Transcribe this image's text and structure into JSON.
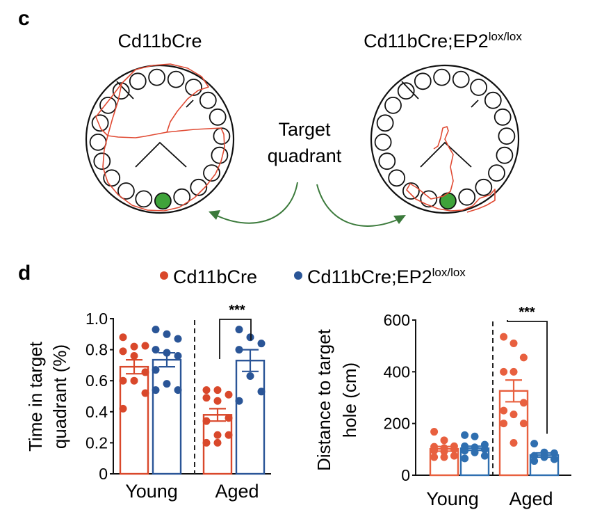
{
  "panel_c": {
    "letter": "c",
    "mazes": [
      {
        "title": "Cd11bCre",
        "title_sup": ""
      },
      {
        "title": "Cd11bCre;EP2",
        "title_sup": "lox/lox"
      }
    ],
    "center_label_line1": "Target",
    "center_label_line2": "quadrant",
    "colors": {
      "track": "#e04a33",
      "target_hole": "#3fa33a",
      "arrow": "#3b7a3b",
      "outline": "#111111"
    }
  },
  "panel_d": {
    "letter": "d",
    "legend": [
      {
        "label": "Cd11bCre",
        "sup": "",
        "color": "#d9482b"
      },
      {
        "label": "Cd11bCre;EP2",
        "sup": "lox/lox",
        "color": "#2a5597"
      }
    ]
  },
  "chart_data": [
    {
      "type": "bar",
      "title": "",
      "xlabel": "",
      "ylabel": "Time in target quadrant (%)",
      "ylabel_line1": "Time in target",
      "ylabel_line2": "quadrant (%)",
      "ylim": [
        0,
        1.0
      ],
      "yticks": [
        "0",
        "0.2",
        "0.4",
        "0.6",
        "0.8",
        "1.0"
      ],
      "ytick_values": [
        0,
        0.2,
        0.4,
        0.6,
        0.8,
        1.0
      ],
      "categories": [
        "Young",
        "Aged"
      ],
      "series": [
        {
          "name": "Cd11bCre",
          "color": "#d9482b",
          "means": [
            0.69,
            0.38
          ],
          "sem": [
            0.045,
            0.04
          ],
          "points": [
            [
              0.88,
              0.82,
              0.825,
              0.79,
              0.76,
              0.655,
              0.6,
              0.6,
              0.52,
              0.42
            ],
            [
              0.54,
              0.54,
              0.51,
              0.49,
              0.47,
              0.36,
              0.34,
              0.25,
              0.25,
              0.2,
              0.2
            ]
          ]
        },
        {
          "name": "Cd11bCre;EP2lox/lox",
          "color": "#2a5597",
          "means": [
            0.735,
            0.73
          ],
          "sem": [
            0.045,
            0.07
          ],
          "points": [
            [
              0.93,
              0.9,
              0.87,
              0.8,
              0.78,
              0.76,
              0.67,
              0.58,
              0.54,
              0.54
            ],
            [
              0.93,
              0.88,
              0.84,
              0.8,
              0.63,
              0.53,
              0.47
            ]
          ]
        }
      ],
      "annotations": [
        {
          "text": "***",
          "between": "Aged Cd11bCre vs Aged Cd11bCre;EP2lox/lox"
        }
      ],
      "grid": false
    },
    {
      "type": "bar",
      "title": "",
      "xlabel": "",
      "ylabel": "Distance to target hole (cm)",
      "ylabel_line1": "Distance to target",
      "ylabel_line2": "hole (cm)",
      "ylim": [
        0,
        600
      ],
      "yticks": [
        "0",
        "200",
        "400",
        "600"
      ],
      "ytick_values": [
        0,
        200,
        400,
        600
      ],
      "categories": [
        "Young",
        "Aged"
      ],
      "series": [
        {
          "name": "Cd11bCre",
          "color": "#e8603f",
          "means": [
            102,
            326
          ],
          "sem": [
            9,
            42
          ],
          "points": [
            [
              168,
              135,
              112,
              110,
              105,
              100,
              95,
              92,
              75,
              70,
              70
            ],
            [
              535,
              510,
              455,
              400,
              400,
              280,
              250,
              235,
              200,
              200,
              125
            ]
          ]
        },
        {
          "name": "Cd11bCre;EP2lox/lox",
          "color": "#2f6fb0",
          "means": [
            104,
            78
          ],
          "sem": [
            8,
            8
          ],
          "points": [
            [
              155,
              150,
              118,
              112,
              108,
              100,
              95,
              88,
              75,
              65
            ],
            [
              122,
              88,
              85,
              75,
              70,
              62,
              55
            ]
          ]
        }
      ],
      "annotations": [
        {
          "text": "***",
          "between": "Aged Cd11bCre vs Aged Cd11bCre;EP2lox/lox"
        }
      ],
      "grid": false
    }
  ]
}
